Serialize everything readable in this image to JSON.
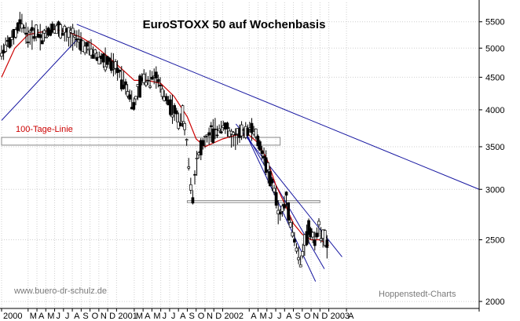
{
  "chart_data": {
    "type": "candlestick",
    "title": "EuroSTOXX 50 auf Wochenbasis",
    "y_scale": "log",
    "ylim": [
      1950,
      5900
    ],
    "y_ticks": [
      {
        "value": 5500,
        "label": "5500"
      },
      {
        "value": 5000,
        "label": "5000"
      },
      {
        "value": 4500,
        "label": "4500"
      },
      {
        "value": 4000,
        "label": "4000"
      },
      {
        "value": 3500,
        "label": "3500"
      },
      {
        "value": 3000,
        "label": "3000"
      },
      {
        "value": 2500,
        "label": "2500"
      },
      {
        "value": 2000,
        "label": "2000"
      }
    ],
    "x_domain": [
      0,
      54
    ],
    "x_ticks": [
      {
        "pos": 0,
        "label": "2000"
      },
      {
        "pos": 3,
        "label": "M"
      },
      {
        "pos": 4,
        "label": "A"
      },
      {
        "pos": 5,
        "label": "M"
      },
      {
        "pos": 6,
        "label": "J"
      },
      {
        "pos": 7,
        "label": "J"
      },
      {
        "pos": 8,
        "label": "A"
      },
      {
        "pos": 9,
        "label": "S"
      },
      {
        "pos": 10,
        "label": "O"
      },
      {
        "pos": 11,
        "label": "N"
      },
      {
        "pos": 12,
        "label": "D"
      },
      {
        "pos": 13,
        "label": "2001"
      },
      {
        "pos": 15,
        "label": "M"
      },
      {
        "pos": 16,
        "label": "A"
      },
      {
        "pos": 17,
        "label": "M"
      },
      {
        "pos": 18,
        "label": "J"
      },
      {
        "pos": 19,
        "label": "J"
      },
      {
        "pos": 20,
        "label": "A"
      },
      {
        "pos": 21,
        "label": "S"
      },
      {
        "pos": 22,
        "label": "O"
      },
      {
        "pos": 23,
        "label": "N"
      },
      {
        "pos": 24,
        "label": "D"
      },
      {
        "pos": 25,
        "label": "2002"
      },
      {
        "pos": 28,
        "label": "A"
      },
      {
        "pos": 29,
        "label": "M"
      },
      {
        "pos": 30,
        "label": "J"
      },
      {
        "pos": 31,
        "label": "J"
      },
      {
        "pos": 32,
        "label": "A"
      },
      {
        "pos": 33,
        "label": "S"
      },
      {
        "pos": 34,
        "label": "O"
      },
      {
        "pos": 35,
        "label": "N"
      },
      {
        "pos": 36,
        "label": "D"
      },
      {
        "pos": 37,
        "label": "2003"
      },
      {
        "pos": 39,
        "label": "A"
      }
    ],
    "price_series": [
      [
        0.0,
        4900
      ],
      [
        0.6,
        5100
      ],
      [
        1.2,
        5150
      ],
      [
        1.7,
        5300
      ],
      [
        2.1,
        5500
      ],
      [
        2.6,
        5350
      ],
      [
        3.0,
        5200
      ],
      [
        3.5,
        5250
      ],
      [
        4.0,
        5300
      ],
      [
        4.6,
        5200
      ],
      [
        5.2,
        5300
      ],
      [
        5.8,
        5400
      ],
      [
        6.4,
        5350
      ],
      [
        7.0,
        5300
      ],
      [
        7.6,
        5200
      ],
      [
        8.2,
        5250
      ],
      [
        8.6,
        5150
      ],
      [
        9.0,
        5050
      ],
      [
        9.6,
        5000
      ],
      [
        10.2,
        4950
      ],
      [
        10.8,
        4850
      ],
      [
        11.4,
        4800
      ],
      [
        12.0,
        4750
      ],
      [
        12.6,
        4700
      ],
      [
        13.2,
        4600
      ],
      [
        13.8,
        4450
      ],
      [
        14.4,
        4250
      ],
      [
        15.0,
        4050
      ],
      [
        15.5,
        4300
      ],
      [
        16.0,
        4500
      ],
      [
        16.6,
        4450
      ],
      [
        17.2,
        4550
      ],
      [
        17.8,
        4400
      ],
      [
        18.2,
        4250
      ],
      [
        18.8,
        4150
      ],
      [
        19.4,
        4000
      ],
      [
        20.0,
        3850
      ],
      [
        20.5,
        3900
      ],
      [
        21.0,
        3500
      ],
      [
        21.3,
        3100
      ],
      [
        21.6,
        2900
      ],
      [
        22.0,
        3300
      ],
      [
        22.6,
        3500
      ],
      [
        23.2,
        3600
      ],
      [
        23.8,
        3700
      ],
      [
        24.4,
        3700
      ],
      [
        25.0,
        3800
      ],
      [
        25.6,
        3700
      ],
      [
        26.2,
        3600
      ],
      [
        26.8,
        3650
      ],
      [
        27.4,
        3700
      ],
      [
        28.0,
        3750
      ],
      [
        28.6,
        3700
      ],
      [
        29.2,
        3500
      ],
      [
        29.8,
        3350
      ],
      [
        30.4,
        3100
      ],
      [
        31.0,
        2950
      ],
      [
        31.4,
        2700
      ],
      [
        31.8,
        2800
      ],
      [
        32.2,
        2900
      ],
      [
        32.6,
        2700
      ],
      [
        33.0,
        2550
      ],
      [
        33.4,
        2400
      ],
      [
        33.8,
        2300
      ],
      [
        34.2,
        2450
      ],
      [
        34.6,
        2600
      ],
      [
        35.0,
        2550
      ],
      [
        35.4,
        2500
      ],
      [
        35.8,
        2600
      ],
      [
        36.2,
        2550
      ],
      [
        36.6,
        2500
      ],
      [
        37.0,
        2350
      ]
    ],
    "moving_average_label": "100-Tage-Linie",
    "moving_average": [
      [
        0.0,
        4500
      ],
      [
        1.5,
        5000
      ],
      [
        3.0,
        5250
      ],
      [
        4.5,
        5300
      ],
      [
        6.0,
        5350
      ],
      [
        7.5,
        5300
      ],
      [
        9.0,
        5200
      ],
      [
        10.5,
        5050
      ],
      [
        12.0,
        4850
      ],
      [
        13.5,
        4650
      ],
      [
        15.0,
        4450
      ],
      [
        16.5,
        4450
      ],
      [
        18.0,
        4400
      ],
      [
        19.5,
        4200
      ],
      [
        21.0,
        3900
      ],
      [
        22.0,
        3600
      ],
      [
        23.0,
        3500
      ],
      [
        24.0,
        3550
      ],
      [
        25.0,
        3600
      ],
      [
        26.5,
        3650
      ],
      [
        28.0,
        3650
      ],
      [
        29.0,
        3550
      ],
      [
        30.0,
        3350
      ],
      [
        31.0,
        3050
      ],
      [
        32.0,
        2850
      ],
      [
        33.0,
        2650
      ],
      [
        34.0,
        2550
      ],
      [
        35.0,
        2500
      ],
      [
        36.0,
        2500
      ],
      [
        37.0,
        2450
      ]
    ],
    "trendlines": [
      {
        "points": [
          [
            0.0,
            3850
          ],
          [
            8.5,
            5150
          ]
        ],
        "color": "#1515a0"
      },
      {
        "points": [
          [
            8.5,
            5450
          ],
          [
            54.0,
            3000
          ]
        ],
        "color": "#1515a0"
      },
      {
        "points": [
          [
            26.5,
            3800
          ],
          [
            38.5,
            2350
          ]
        ],
        "color": "#1515a0"
      },
      {
        "points": [
          [
            27.5,
            3700
          ],
          [
            36.5,
            2250
          ]
        ],
        "color": "#1515a0"
      },
      {
        "points": [
          [
            27.5,
            3700
          ],
          [
            35.5,
            2150
          ]
        ],
        "color": "#1515a0"
      }
    ],
    "support_bands": [
      {
        "x": [
          0,
          31.5
        ],
        "y": [
          3620,
          3520
        ],
        "color": "#888888"
      },
      {
        "x": [
          21.0,
          36.0
        ],
        "y": [
          2880,
          2860
        ],
        "color": "#888888"
      }
    ],
    "annotations": {
      "ma_label": "100-Tage-Linie",
      "website": "www.buero-dr-schulz.de",
      "source": "Hoppenstedt-Charts"
    },
    "grid": true,
    "colors": {
      "price": "#000000",
      "moving_average": "#cc0000",
      "trendline": "#1515a0",
      "band": "#888888",
      "grid": "#cfcfcf"
    }
  }
}
